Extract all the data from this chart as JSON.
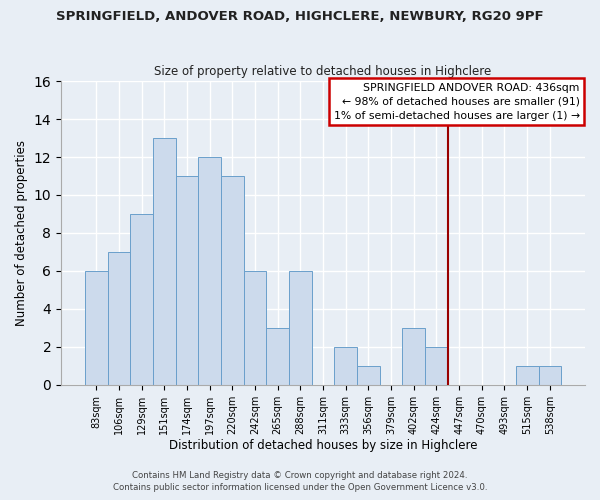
{
  "title1": "SPRINGFIELD, ANDOVER ROAD, HIGHCLERE, NEWBURY, RG20 9PF",
  "title2": "Size of property relative to detached houses in Highclere",
  "xlabel": "Distribution of detached houses by size in Highclere",
  "ylabel": "Number of detached properties",
  "bar_labels": [
    "83sqm",
    "106sqm",
    "129sqm",
    "151sqm",
    "174sqm",
    "197sqm",
    "220sqm",
    "242sqm",
    "265sqm",
    "288sqm",
    "311sqm",
    "333sqm",
    "356sqm",
    "379sqm",
    "402sqm",
    "424sqm",
    "447sqm",
    "470sqm",
    "493sqm",
    "515sqm",
    "538sqm"
  ],
  "bar_heights": [
    6,
    7,
    9,
    13,
    11,
    12,
    11,
    6,
    3,
    6,
    0,
    2,
    1,
    0,
    3,
    2,
    0,
    0,
    0,
    1,
    1
  ],
  "bar_color": "#ccdaec",
  "bar_edge_color": "#6a9fcb",
  "vline_x": 16.0,
  "vline_color": "#990000",
  "annotation_title": "SPRINGFIELD ANDOVER ROAD: 436sqm",
  "annotation_line1": "← 98% of detached houses are smaller (91)",
  "annotation_line2": "1% of semi-detached houses are larger (1) →",
  "annotation_box_facecolor": "#ffffff",
  "annotation_box_edgecolor": "#cc0000",
  "ylim": [
    0,
    16
  ],
  "yticks": [
    0,
    2,
    4,
    6,
    8,
    10,
    12,
    14,
    16
  ],
  "footer1": "Contains HM Land Registry data © Crown copyright and database right 2024.",
  "footer2": "Contains public sector information licensed under the Open Government Licence v3.0.",
  "fig_bg_color": "#e8eef5",
  "plot_bg_color": "#e8eef5",
  "grid_color": "#ffffff",
  "title1_fontsize": 9.5,
  "title2_fontsize": 8.5,
  "ylabel_fontsize": 8.5,
  "xlabel_fontsize": 8.5,
  "tick_fontsize": 7.0,
  "annotation_fontsize": 7.8,
  "footer_fontsize": 6.2
}
